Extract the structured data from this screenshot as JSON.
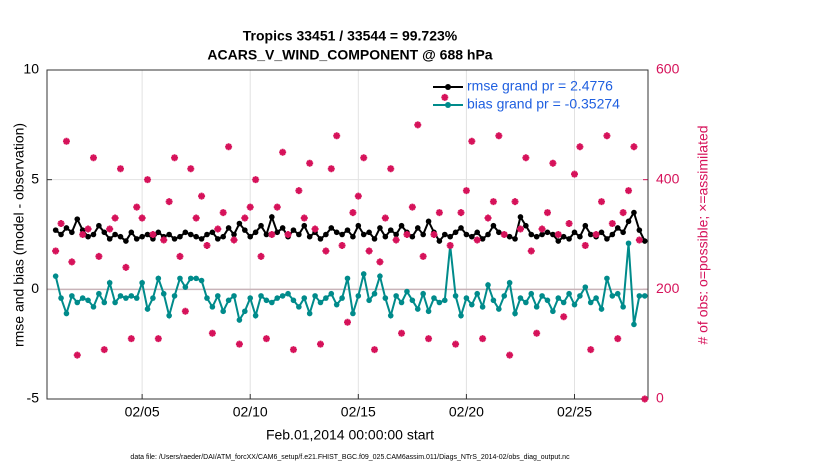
{
  "chart_data": {
    "type": "line",
    "title": "Tropics 33451 / 33544 = 99.723%",
    "subtitle": "ACARS_V_WIND_COMPONENT @ 688 hPa",
    "x_label": "Feb.01,2014 00:00:00 start",
    "y_label": "rmse and bias (model - observation)",
    "y2_label": "# of obs: o=possible; ×=assimilated",
    "footnote": "data file: /Users/raeder/DAI/ATM_forcXX/CAM6_setup/f.e21.FHIST_BGC.f09_025.CAM6assim.011/Diags_NTrS_2014-02/obs_diag_output.nc",
    "xlim": [
      0.6,
      28.4
    ],
    "xticks": [
      {
        "value": 5,
        "label": "02/05"
      },
      {
        "value": 10,
        "label": "02/10"
      },
      {
        "value": 15,
        "label": "02/15"
      },
      {
        "value": 20,
        "label": "02/20"
      },
      {
        "value": 25,
        "label": "02/25"
      }
    ],
    "ylim": [
      -5,
      10
    ],
    "yticks": [
      -5,
      0,
      5,
      10
    ],
    "y2lim": [
      0,
      600
    ],
    "y2ticks": [
      0,
      200,
      400,
      600
    ],
    "grid": true,
    "legend": "upper right",
    "x": [
      1,
      1.25,
      1.5,
      1.75,
      2,
      2.25,
      2.5,
      2.75,
      3,
      3.25,
      3.5,
      3.75,
      4,
      4.25,
      4.5,
      4.75,
      5,
      5.25,
      5.5,
      5.75,
      6,
      6.25,
      6.5,
      6.75,
      7,
      7.25,
      7.5,
      7.75,
      8,
      8.25,
      8.5,
      8.75,
      9,
      9.25,
      9.5,
      9.75,
      10,
      10.25,
      10.5,
      10.75,
      11,
      11.25,
      11.5,
      11.75,
      12,
      12.25,
      12.5,
      12.75,
      13,
      13.25,
      13.5,
      13.75,
      14,
      14.25,
      14.5,
      14.75,
      15,
      15.25,
      15.5,
      15.75,
      16,
      16.25,
      16.5,
      16.75,
      17,
      17.25,
      17.5,
      17.75,
      18,
      18.25,
      18.5,
      18.75,
      19,
      19.25,
      19.5,
      19.75,
      20,
      20.25,
      20.5,
      20.75,
      21,
      21.25,
      21.5,
      21.75,
      22,
      22.25,
      22.5,
      22.75,
      23,
      23.25,
      23.5,
      23.75,
      24,
      24.25,
      24.5,
      24.75,
      25,
      25.25,
      25.5,
      25.75,
      26,
      26.25,
      26.5,
      26.75,
      27,
      27.25,
      27.5,
      27.75,
      28,
      28.25
    ],
    "series": [
      {
        "name": "rmse grand pr = 2.4776",
        "color": "#000000",
        "values": [
          2.7,
          2.5,
          2.8,
          2.6,
          3.2,
          2.7,
          2.4,
          2.5,
          2.9,
          2.6,
          2.3,
          2.5,
          2.4,
          2.2,
          2.6,
          2.3,
          2.4,
          2.5,
          2.3,
          2.6,
          2.4,
          2.5,
          2.3,
          2.4,
          2.6,
          2.5,
          2.4,
          2.3,
          2.5,
          2.6,
          2.3,
          2.4,
          2.8,
          2.5,
          3.0,
          2.7,
          2.4,
          2.6,
          2.9,
          2.5,
          3.3,
          2.6,
          2.8,
          2.4,
          2.7,
          2.5,
          2.9,
          2.4,
          2.6,
          2.3,
          2.5,
          2.8,
          2.6,
          2.5,
          2.7,
          2.4,
          2.9,
          2.5,
          2.6,
          2.3,
          2.8,
          2.4,
          2.7,
          2.5,
          2.9,
          2.6,
          2.4,
          2.8,
          2.5,
          3.1,
          2.6,
          2.2,
          2.5,
          2.4,
          2.6,
          2.8,
          2.5,
          2.4,
          2.6,
          2.3,
          2.5,
          2.9,
          2.6,
          2.5,
          2.4,
          2.3,
          3.3,
          2.9,
          2.5,
          2.4,
          2.5,
          2.6,
          2.5,
          2.2,
          2.4,
          2.3,
          2.6,
          2.4,
          2.9,
          2.5,
          2.4,
          2.6,
          2.3,
          2.5,
          2.8,
          2.6,
          3.1,
          3.5,
          2.7,
          2.2
        ]
      },
      {
        "name": "bias grand pr = -0.35274",
        "color": "#008b8b",
        "values": [
          0.6,
          -0.4,
          -1.1,
          -0.3,
          -0.6,
          -0.4,
          -0.5,
          -0.8,
          -0.2,
          -0.6,
          0.3,
          -0.6,
          -0.3,
          -0.4,
          -0.3,
          -0.4,
          0.3,
          -0.9,
          -0.4,
          0.5,
          -0.2,
          -1.2,
          -0.3,
          0.5,
          0.1,
          0.5,
          0.5,
          0.4,
          -0.4,
          -0.8,
          -0.3,
          -1.0,
          -0.5,
          -0.3,
          -1.4,
          -1.0,
          -0.4,
          -1.2,
          -0.3,
          -0.5,
          -0.6,
          -0.4,
          -0.3,
          -0.2,
          -0.5,
          -0.8,
          -0.4,
          -1.1,
          -0.3,
          -0.6,
          -0.4,
          -0.2,
          -0.7,
          -0.4,
          0.5,
          -1.1,
          -0.3,
          0.7,
          -0.5,
          -0.2,
          0.6,
          -0.4,
          -1.2,
          -0.3,
          -0.6,
          -0.1,
          -0.5,
          -0.9,
          -0.2,
          -1.0,
          -0.4,
          -0.6,
          -0.5,
          2.0,
          -0.3,
          -1.2,
          -0.4,
          -0.7,
          -0.2,
          -0.8,
          0.2,
          -0.5,
          -0.9,
          -0.3,
          0.3,
          -1.1,
          -0.4,
          -0.6,
          -0.2,
          -0.8,
          -0.3,
          -0.5,
          -1.0,
          -0.4,
          -0.6,
          -0.2,
          -0.7,
          -0.3,
          0.1,
          -0.6,
          -0.4,
          -0.9,
          0.5,
          -0.3,
          -0.2,
          -0.8,
          2.1,
          -1.6,
          -0.3,
          -0.3
        ]
      },
      {
        "color": "#d6125a",
        "axis": "y2",
        "values": [
          270,
          320,
          470,
          250,
          80,
          300,
          310,
          440,
          260,
          90,
          310,
          330,
          420,
          240,
          110,
          350,
          330,
          400,
          300,
          110,
          290,
          360,
          440,
          260,
          160,
          420,
          330,
          370,
          280,
          120,
          310,
          340,
          460,
          290,
          100,
          330,
          350,
          400,
          260,
          110,
          300,
          350,
          450,
          300,
          90,
          380,
          330,
          430,
          310,
          100,
          270,
          420,
          480,
          280,
          140,
          340,
          370,
          440,
          270,
          90,
          250,
          330,
          420,
          290,
          120,
          300,
          350,
          500,
          260,
          110,
          300,
          340,
          550,
          280,
          100,
          340,
          380,
          470,
          290,
          110,
          330,
          360,
          480,
          300,
          80,
          360,
          310,
          440,
          270,
          120,
          310,
          340,
          430,
          300,
          150,
          320,
          410,
          460,
          280,
          90,
          300,
          360,
          480,
          320,
          110,
          340,
          380,
          460,
          290,
          0
        ]
      }
    ]
  }
}
